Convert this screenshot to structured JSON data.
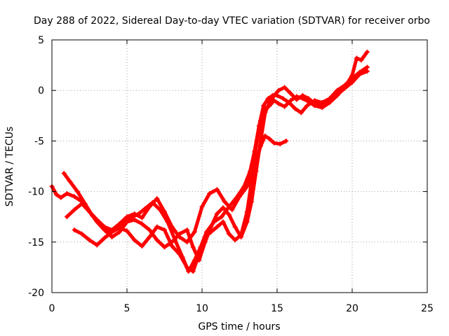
{
  "chart_data": {
    "type": "scatter",
    "title": "Day 288 of 2022, Sidereal Day-to-day VTEC variation (SDTVAR) for receiver orbo",
    "xlabel": "GPS time / hours",
    "ylabel": "SDTVAR / TECUs",
    "xlim": [
      0,
      25
    ],
    "ylim": [
      -20,
      5
    ],
    "xticks": [
      0,
      5,
      10,
      15,
      20,
      25
    ],
    "yticks": [
      -20,
      -15,
      -10,
      -5,
      0,
      5
    ],
    "grid": true,
    "marker": "plus",
    "series_color": "#ff0000",
    "series": [
      {
        "x": [
          0.0,
          0.3,
          0.6,
          1.0,
          1.5,
          2.0,
          2.5,
          3.0,
          3.5,
          4.0,
          4.5,
          5.0,
          5.5,
          6.0,
          6.5,
          7.0,
          7.5,
          8.0,
          8.5,
          9.0,
          9.5,
          10.0,
          10.5,
          11.0,
          11.5,
          12.0,
          12.5,
          13.0,
          13.3,
          13.6,
          13.9,
          14.2,
          14.5,
          14.8,
          15.2,
          15.6
        ],
        "y": [
          -9.5,
          -10.3,
          -10.6,
          -10.2,
          -10.5,
          -11.0,
          -12.0,
          -12.8,
          -13.5,
          -13.8,
          -13.2,
          -12.5,
          -12.2,
          -12.6,
          -11.5,
          -10.7,
          -12.0,
          -13.5,
          -14.5,
          -15.0,
          -14.0,
          -11.5,
          -10.2,
          -9.8,
          -11.0,
          -11.8,
          -10.5,
          -9.5,
          -8.5,
          -7.0,
          -5.5,
          -4.5,
          -4.8,
          -5.2,
          -5.3,
          -5.0
        ]
      },
      {
        "x": [
          0.8,
          1.2,
          1.7,
          2.2,
          2.7,
          3.2,
          3.7,
          4.2,
          4.7,
          5.2,
          5.7,
          6.2,
          6.7,
          7.2,
          7.7,
          8.2,
          8.7,
          9.1,
          9.5,
          9.9,
          10.3,
          10.8,
          11.3,
          11.8,
          12.3,
          12.8,
          13.2,
          13.5,
          13.8,
          14.1,
          14.4,
          14.7,
          15.0,
          15.4,
          15.8,
          16.2,
          16.6,
          17.0,
          17.5,
          18.0,
          18.5,
          19.0,
          19.5,
          20.0,
          20.5,
          21.0
        ],
        "y": [
          -8.2,
          -9.0,
          -10.0,
          -11.2,
          -12.4,
          -13.2,
          -14.0,
          -13.7,
          -13.2,
          -12.6,
          -12.3,
          -11.7,
          -11.1,
          -11.8,
          -13.0,
          -14.8,
          -16.5,
          -17.9,
          -16.8,
          -15.5,
          -14.0,
          -13.0,
          -12.5,
          -11.5,
          -10.6,
          -9.5,
          -8.0,
          -6.0,
          -3.5,
          -1.5,
          -0.8,
          -0.5,
          -0.5,
          -0.8,
          -1.2,
          -1.8,
          -2.2,
          -1.5,
          -1.0,
          -1.2,
          -0.8,
          0.0,
          0.5,
          1.2,
          1.8,
          2.3
        ]
      },
      {
        "x": [
          1.0,
          1.5,
          2.0,
          2.5,
          3.0,
          3.5,
          4.0,
          4.5,
          5.0,
          5.5,
          6.0,
          6.5,
          7.0,
          7.5,
          8.0,
          8.5,
          9.0,
          9.4,
          9.8,
          10.2,
          10.6,
          11.0,
          11.4,
          11.8,
          12.2,
          12.6,
          13.0,
          13.3,
          13.6,
          13.9,
          14.2,
          14.5,
          14.8,
          15.1,
          15.5,
          15.9,
          16.3,
          16.7,
          17.1,
          17.5,
          18.0,
          18.5,
          19.0,
          19.5,
          20.0,
          20.5,
          21.0
        ],
        "y": [
          -12.5,
          -11.8,
          -11.2,
          -12.0,
          -13.0,
          -13.8,
          -14.5,
          -14.0,
          -13.0,
          -12.8,
          -13.2,
          -13.8,
          -14.8,
          -15.5,
          -15.0,
          -14.2,
          -13.8,
          -15.5,
          -16.8,
          -15.0,
          -13.5,
          -12.2,
          -11.6,
          -12.3,
          -13.5,
          -14.5,
          -13.0,
          -11.0,
          -8.0,
          -5.0,
          -2.2,
          -1.2,
          -0.5,
          0.0,
          0.3,
          -0.3,
          -0.9,
          -0.5,
          -0.8,
          -1.3,
          -1.4,
          -1.1,
          -0.4,
          0.2,
          0.8,
          1.6,
          1.9
        ]
      },
      {
        "x": [
          1.5,
          2.0,
          2.5,
          3.0,
          3.5,
          4.0,
          4.5,
          5.0,
          5.5,
          6.0,
          6.5,
          7.0,
          7.5,
          8.0,
          8.5,
          9.0,
          9.4,
          9.8,
          10.2,
          10.6,
          11.0,
          11.4,
          11.8,
          12.2,
          12.6,
          13.0,
          13.3,
          13.6,
          13.9,
          14.2,
          14.5,
          14.8,
          15.1,
          15.5,
          15.9,
          16.3,
          16.7,
          17.1,
          17.5,
          18.0,
          18.5,
          19.0,
          19.5,
          20.0,
          20.3,
          20.6,
          21.0
        ],
        "y": [
          -13.8,
          -14.2,
          -14.8,
          -15.3,
          -14.6,
          -14.0,
          -13.6,
          -13.9,
          -14.8,
          -15.4,
          -14.5,
          -13.5,
          -13.8,
          -15.4,
          -16.2,
          -17.5,
          -17.9,
          -16.2,
          -14.5,
          -14.0,
          -13.5,
          -13.0,
          -14.2,
          -14.8,
          -14.3,
          -12.0,
          -9.0,
          -5.5,
          -3.0,
          -1.8,
          -1.5,
          -1.0,
          -1.3,
          -1.6,
          -1.0,
          -0.6,
          -0.8,
          -1.1,
          -1.5,
          -1.7,
          -1.2,
          -0.5,
          0.3,
          1.5,
          3.2,
          3.0,
          3.8
        ]
      }
    ]
  }
}
